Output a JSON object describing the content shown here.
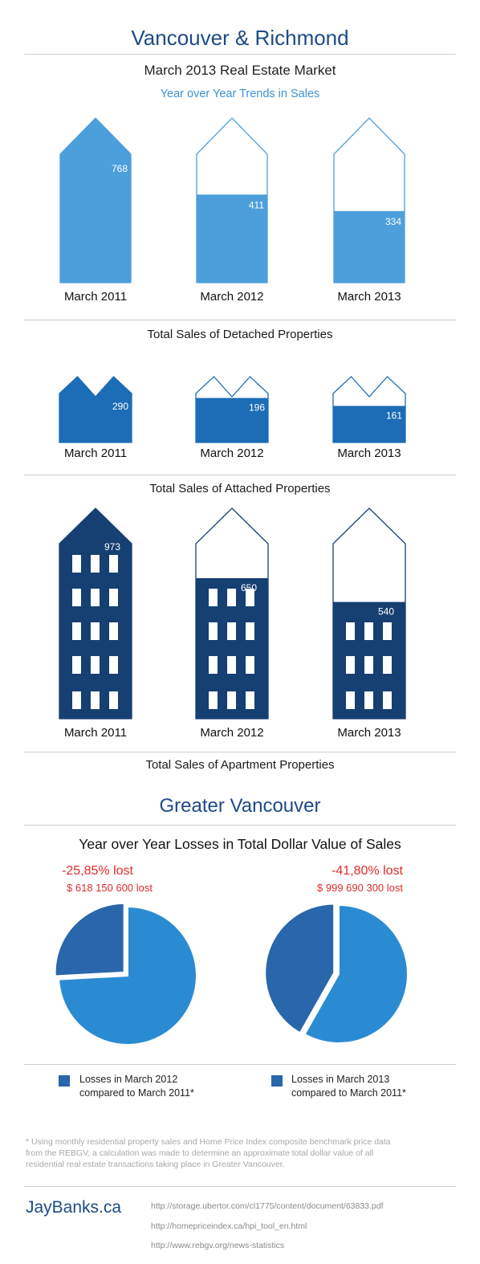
{
  "header": {
    "title": "Vancouver & Richmond",
    "subtitle": "March 2013 Real Estate Market",
    "subhead": "Year over Year Trends in Sales"
  },
  "chart_data": [
    {
      "type": "bar",
      "title": "Total Sales of Detached Properties",
      "categories": [
        "March 2011",
        "March 2012",
        "March 2013"
      ],
      "values": [
        768,
        411,
        334
      ],
      "color": "#4d9fdb"
    },
    {
      "type": "bar",
      "title": "Total Sales of Attached Properties",
      "categories": [
        "March 2011",
        "March 2012",
        "March 2013"
      ],
      "values": [
        290,
        196,
        161
      ],
      "color": "#1d6db6"
    },
    {
      "type": "bar",
      "title": "Total Sales of Apartment Properties",
      "categories": [
        "March 2011",
        "March 2012",
        "March 2013"
      ],
      "values": [
        973,
        650,
        540
      ],
      "color": "#163f72"
    },
    {
      "type": "pie",
      "title": "Year over Year Losses in Total Dollar Value of Sales",
      "loss_percent": "-25,85% lost",
      "loss_amount": "$ 618 150 600 lost",
      "slices": [
        {
          "label": "Losses in March 2012 compared to March 2011*",
          "value": 25.85,
          "color": "#2a66ab"
        },
        {
          "label": "",
          "value": 74.15,
          "color": "#2b8bd2"
        }
      ]
    },
    {
      "type": "pie",
      "title": "Year over Year Losses in Total Dollar Value of Sales",
      "loss_percent": "-41,80% lost",
      "loss_amount": "$ 999 690 300 lost",
      "slices": [
        {
          "label": "Losses in March 2013 compared to March 2011*",
          "value": 41.8,
          "color": "#2a66ab"
        },
        {
          "label": "",
          "value": 58.2,
          "color": "#2b8bd2"
        }
      ]
    }
  ],
  "greater": {
    "title": "Greater Vancouver",
    "subtitle": "Year over Year Losses in Total Dollar Value of Sales"
  },
  "legend": {
    "item1_line1": "Losses in March 2012",
    "item1_line2": "compared to March 2011*",
    "item2_line1": "Losses in March 2013",
    "item2_line2": "compared to March 2011*",
    "color": "#2a66ab"
  },
  "footnote": "* Using monthly residential property sales and Home Price Index composite benchmark price data from the REBGV, a calculation was made to determine an approximate total dollar value of all residential real estate transactions taking place in Greater Vancouver.",
  "footer": {
    "brand": "JayBanks.ca",
    "sources": [
      "http://storage.ubertor.com/cl1775/content/document/63833.pdf",
      "http://homepriceindex.ca/hpi_tool_en.html",
      "http://www.rebgv.org/news-statistics"
    ]
  }
}
